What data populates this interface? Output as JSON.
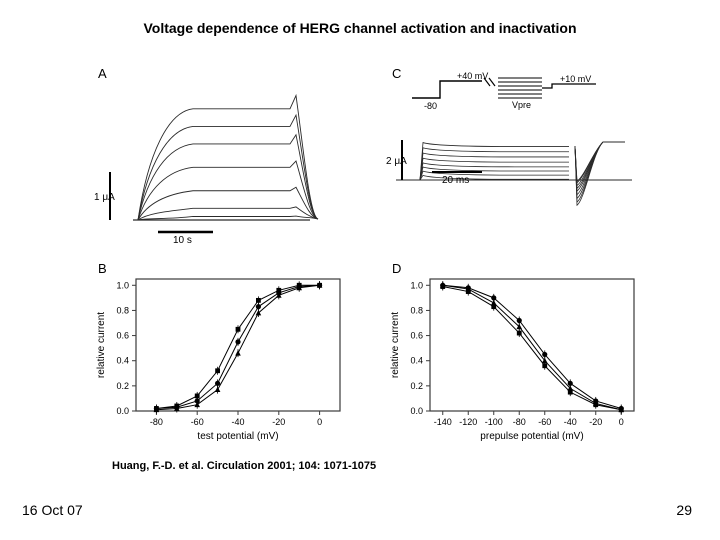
{
  "title": "Voltage dependence of HERG channel activation and inactivation",
  "citation": "Huang, F.-D. et al. Circulation 2001; 104: 1071-1075",
  "date": "16 Oct 07",
  "page_number": "29",
  "panels": {
    "A": {
      "label": "A",
      "y_cal": {
        "value": "1",
        "unit": "μA"
      },
      "x_cal": "10 s",
      "trace_heights": [
        0.95,
        0.8,
        0.65,
        0.45,
        0.25,
        0.1,
        0.03
      ],
      "colors": {
        "trace": "#2a2a2a",
        "scale": "#000000"
      }
    },
    "B": {
      "label": "B",
      "ylabel": "relative current",
      "xlabel": "test potential (mV)",
      "xlim": [
        -90,
        10
      ],
      "xticks": [
        -80,
        -60,
        -40,
        -20,
        0
      ],
      "ylim": [
        0,
        1.05
      ],
      "yticks": [
        0.0,
        0.2,
        0.4,
        0.6,
        0.8,
        1.0
      ],
      "series": [
        {
          "marker": "circle",
          "x": [
            -80,
            -70,
            -60,
            -50,
            -40,
            -30,
            -20,
            -10,
            0
          ],
          "y": [
            0.02,
            0.03,
            0.08,
            0.22,
            0.55,
            0.83,
            0.94,
            0.99,
            1.0
          ]
        },
        {
          "marker": "square",
          "x": [
            -80,
            -70,
            -60,
            -50,
            -40,
            -30,
            -20,
            -10,
            0
          ],
          "y": [
            0.02,
            0.04,
            0.12,
            0.32,
            0.65,
            0.88,
            0.96,
            1.0,
            1.0
          ]
        },
        {
          "marker": "triangle",
          "x": [
            -80,
            -70,
            -60,
            -50,
            -40,
            -30,
            -20,
            -10,
            0
          ],
          "y": [
            0.01,
            0.02,
            0.05,
            0.17,
            0.46,
            0.78,
            0.92,
            0.98,
            1.0
          ]
        }
      ],
      "colors": {
        "axis": "#3a3a3a",
        "marker": "#000000"
      }
    },
    "C": {
      "label": "C",
      "protocol": {
        "hold": "-80",
        "step": "+40 mV",
        "post": "+10 mV",
        "label": "Vpre"
      },
      "y_cal": {
        "value": "2",
        "unit": "μA"
      },
      "x_cal": "20 ms",
      "out_trace_heights": [
        0.72,
        0.62,
        0.52,
        0.42,
        0.33,
        0.25,
        0.17,
        0.09
      ],
      "inact_dip_depths": [
        0.55,
        0.48,
        0.4,
        0.32,
        0.24,
        0.18,
        0.12,
        0.06,
        0.03
      ],
      "colors": {
        "trace": "#2a2a2a",
        "scale": "#000000"
      }
    },
    "D": {
      "label": "D",
      "ylabel": "relative current",
      "xlabel": "prepulse potential (mV)",
      "xlim": [
        -150,
        10
      ],
      "xticks": [
        -140,
        -120,
        -100,
        -80,
        -60,
        -40,
        -20,
        0
      ],
      "ylim": [
        0,
        1.05
      ],
      "yticks": [
        0.0,
        0.2,
        0.4,
        0.6,
        0.8,
        1.0
      ],
      "series": [
        {
          "marker": "circle",
          "x": [
            -140,
            -120,
            -100,
            -80,
            -60,
            -40,
            -20,
            0
          ],
          "y": [
            1.0,
            0.98,
            0.9,
            0.72,
            0.45,
            0.22,
            0.08,
            0.02
          ]
        },
        {
          "marker": "square",
          "x": [
            -140,
            -120,
            -100,
            -80,
            -60,
            -40,
            -20,
            0
          ],
          "y": [
            0.99,
            0.95,
            0.83,
            0.62,
            0.36,
            0.15,
            0.05,
            0.01
          ]
        },
        {
          "marker": "triangle",
          "x": [
            -140,
            -120,
            -100,
            -80,
            -60,
            -40,
            -20,
            0
          ],
          "y": [
            1.0,
            0.97,
            0.86,
            0.67,
            0.4,
            0.18,
            0.06,
            0.01
          ]
        }
      ],
      "colors": {
        "axis": "#3a3a3a",
        "marker": "#000000"
      }
    }
  },
  "figure_bg": "#ffffff",
  "font_sizes": {
    "title": 14,
    "panel_label": 13,
    "axis_num": 9,
    "axis_label": 10,
    "citation": 11,
    "footer": 14
  }
}
